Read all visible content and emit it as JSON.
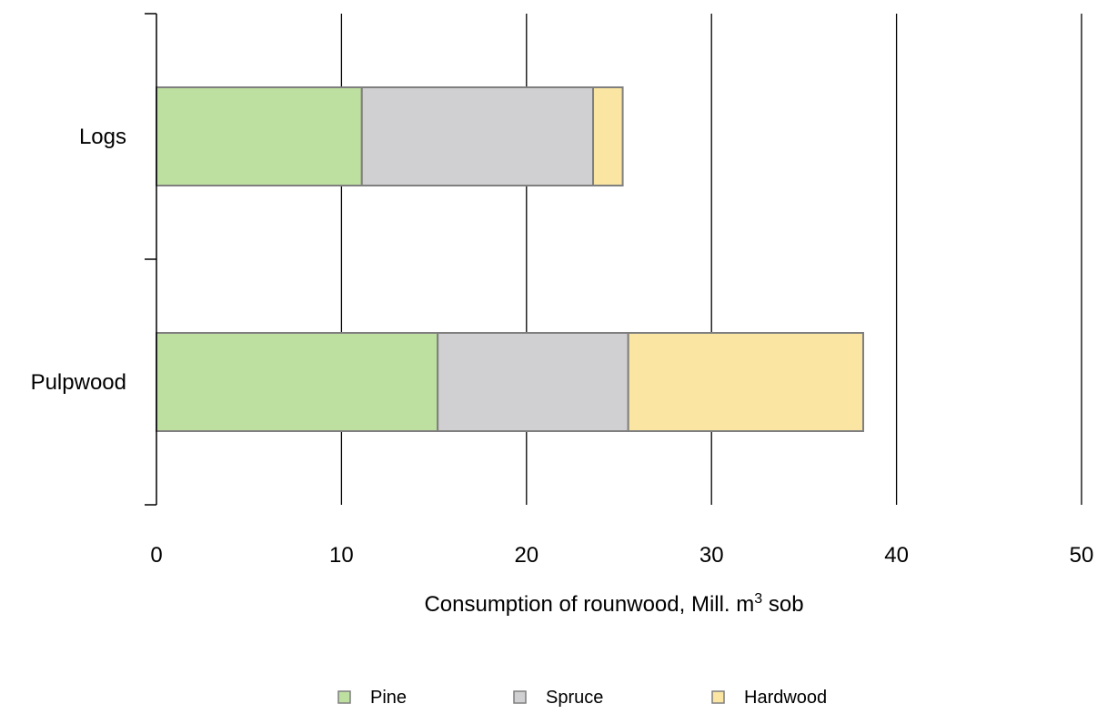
{
  "chart_data": {
    "type": "bar",
    "orientation": "horizontal",
    "stacked": true,
    "categories": [
      "Logs",
      "Pulpwood"
    ],
    "series": [
      {
        "name": "Pine",
        "values": [
          11.1,
          15.2
        ],
        "color": "#bddf9f"
      },
      {
        "name": "Spruce",
        "values": [
          12.5,
          10.3
        ],
        "color": "#d0d0d2"
      },
      {
        "name": "Hardwood",
        "values": [
          1.6,
          12.7
        ],
        "color": "#fae6a2"
      }
    ],
    "xlim": [
      0,
      50
    ],
    "x_ticks": [
      "0",
      "10",
      "20",
      "30",
      "40",
      "50"
    ],
    "xlabel": {
      "prefix": "Consumption of rounwood, Mill. m",
      "superscript": "3",
      "suffix": " sob"
    },
    "ylabel": "",
    "title": "",
    "grid": "vertical major gridlines",
    "legend_position": "bottom",
    "bar_border_color": "#7f7f7f",
    "axis_color": "#000000"
  }
}
